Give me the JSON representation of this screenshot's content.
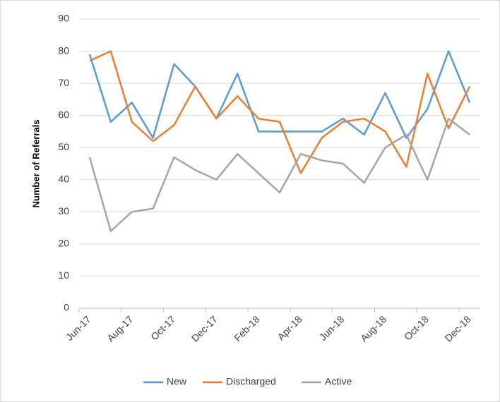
{
  "chart_data": {
    "type": "line",
    "y_label": "Number of Referrals",
    "categories": [
      "Jun-17",
      null,
      "Aug-17",
      null,
      "Oct-17",
      null,
      "Dec-17",
      null,
      "Feb-18",
      null,
      "Apr-18",
      null,
      "Jun-18",
      null,
      "Aug-18",
      null,
      "Oct-18",
      null,
      "Dec-18"
    ],
    "series": [
      {
        "name": "New",
        "color": "#5b9bd5",
        "values": [
          79,
          58,
          64,
          53,
          76,
          69,
          59,
          73,
          55,
          55,
          55,
          55,
          59,
          54,
          67,
          53,
          62,
          80,
          64
        ]
      },
      {
        "name": "Discharged",
        "color": "#ed7d31",
        "values": [
          77,
          80,
          58,
          52,
          57,
          69,
          59,
          66,
          59,
          58,
          42,
          53,
          58,
          59,
          55,
          44,
          73,
          56,
          69
        ]
      },
      {
        "name": "Active",
        "color": "#a5a5a5",
        "values": [
          47,
          24,
          30,
          31,
          47,
          43,
          40,
          48,
          42,
          36,
          48,
          46,
          45,
          39,
          50,
          54,
          40,
          59,
          54
        ]
      }
    ],
    "ylim": [
      0,
      90
    ],
    "yticks": [
      0,
      10,
      20,
      30,
      40,
      50,
      60,
      70,
      80,
      90
    ],
    "grid": true,
    "legend": "bottom"
  }
}
